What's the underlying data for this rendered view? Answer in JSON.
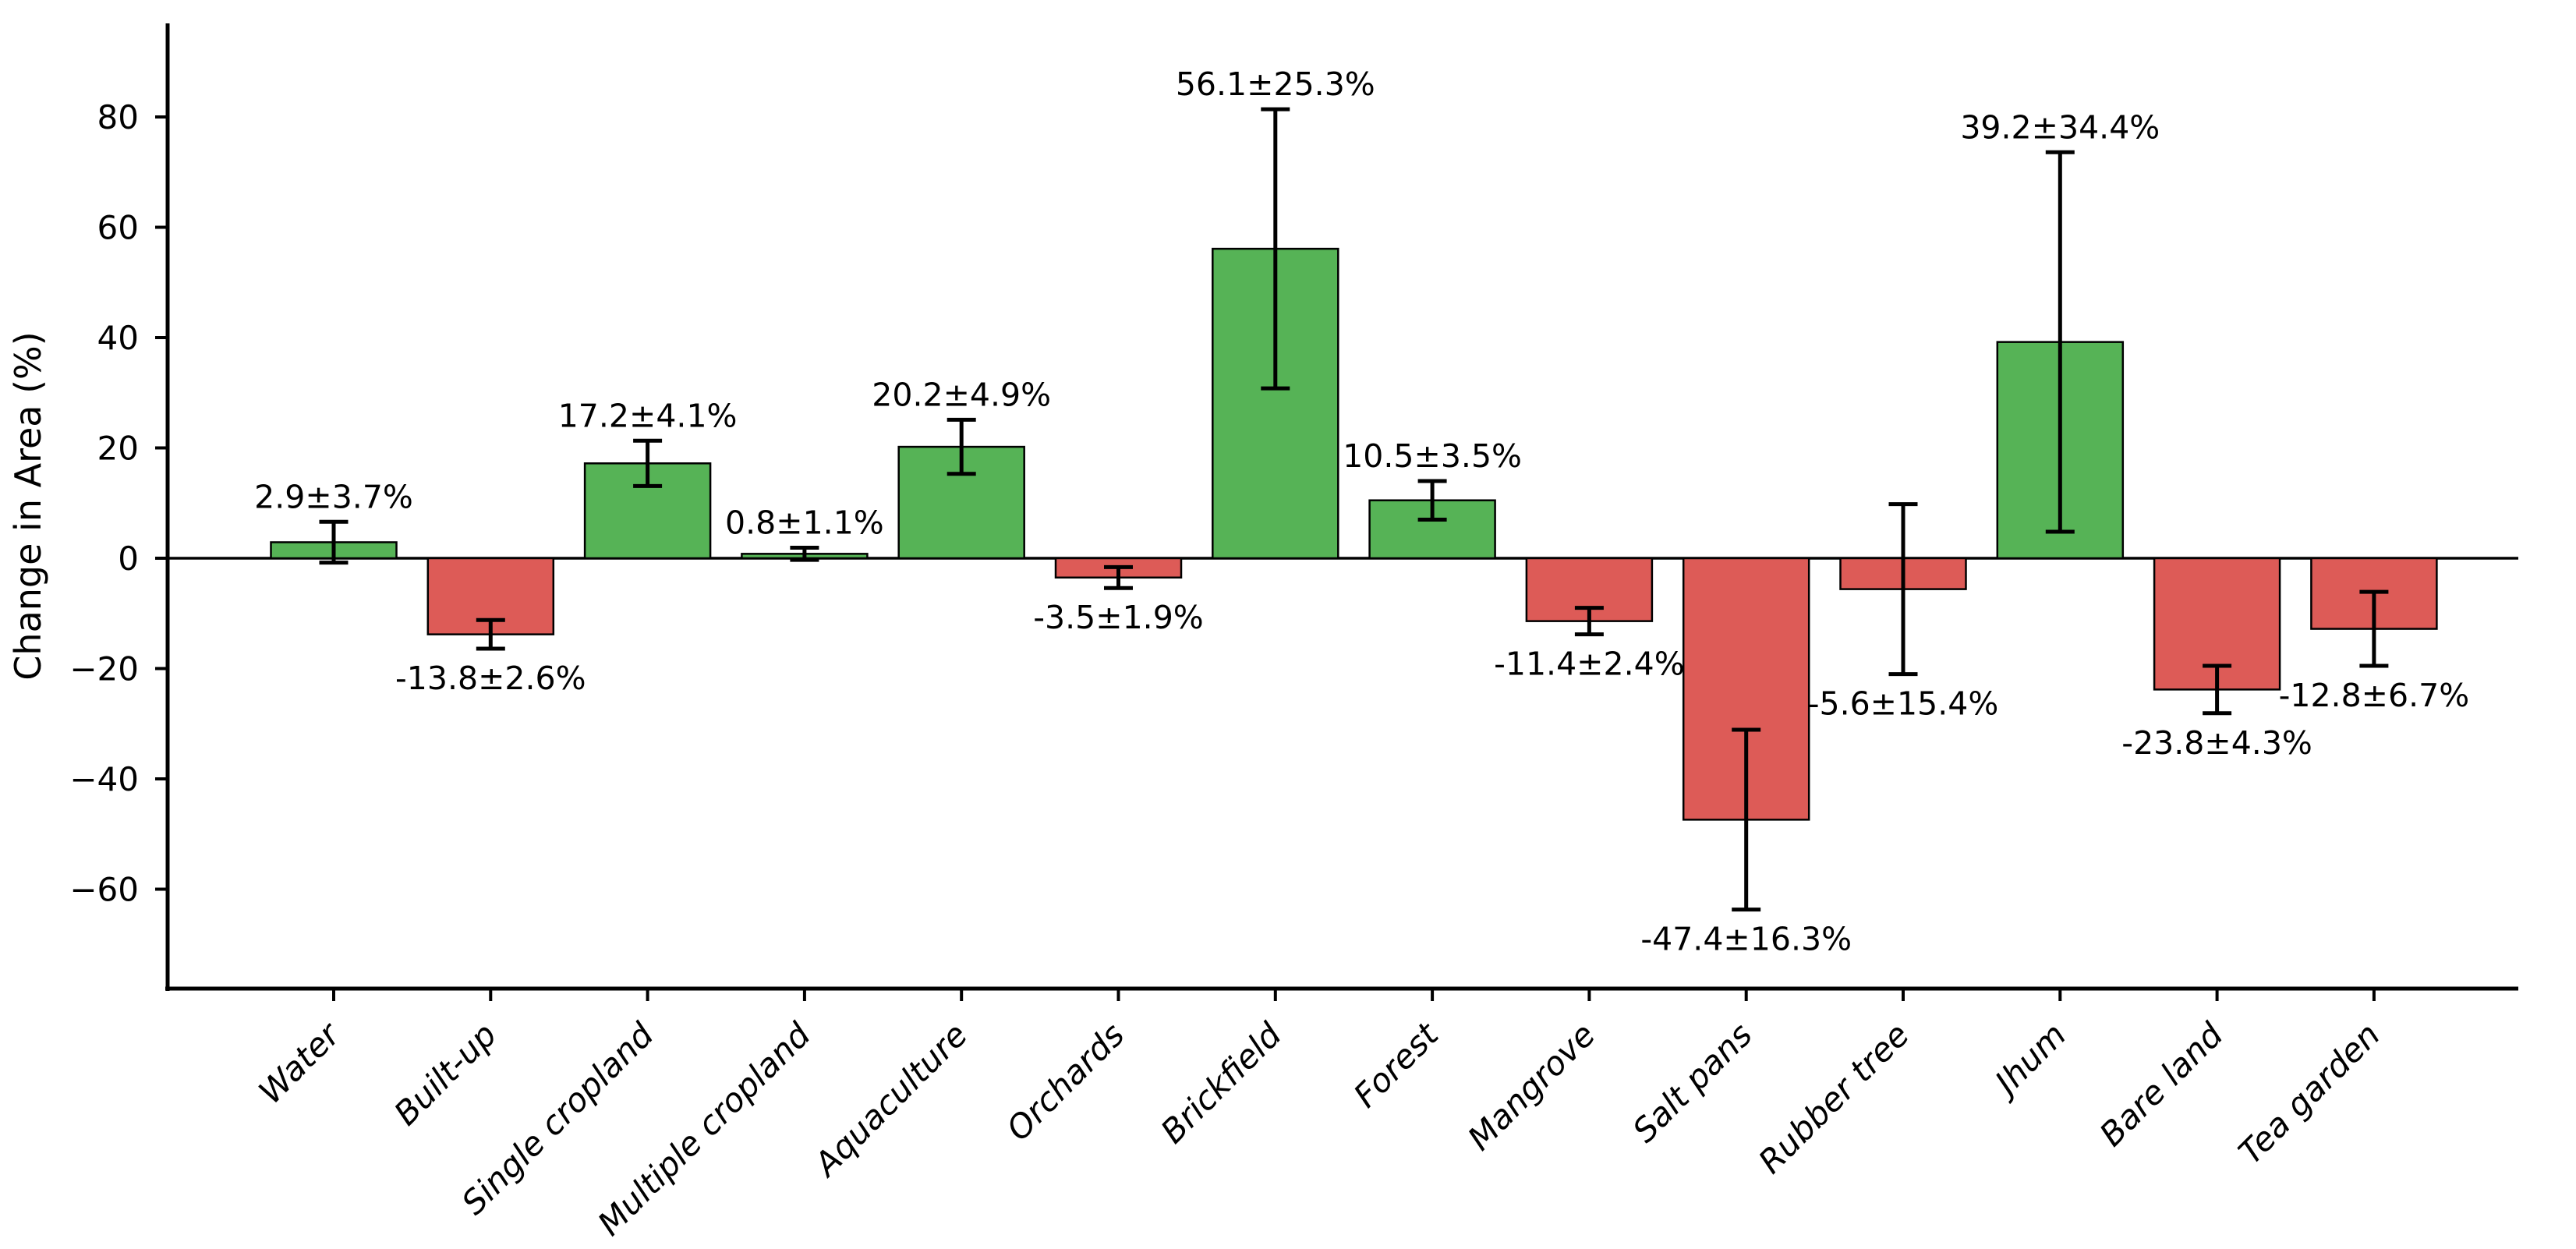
{
  "figure": {
    "ylabel": "Change in Area (%)"
  },
  "chart_data": {
    "type": "bar",
    "title": "",
    "xlabel": "",
    "ylabel": "Change in Area (%)",
    "categories": [
      "Water",
      "Built-up",
      "Single cropland",
      "Multiple cropland",
      "Aquaculture",
      "Orchards",
      "Brickfield",
      "Forest",
      "Mangrove",
      "Salt pans",
      "Rubber tree",
      "Jhum",
      "Bare land",
      "Tea garden"
    ],
    "values": [
      2.9,
      -13.8,
      17.2,
      0.8,
      20.2,
      -3.5,
      56.1,
      10.5,
      -11.4,
      -47.4,
      -5.6,
      39.2,
      -23.8,
      -12.8
    ],
    "errors": [
      3.7,
      2.6,
      4.1,
      1.1,
      4.9,
      1.9,
      25.3,
      3.5,
      2.4,
      16.3,
      15.4,
      34.4,
      4.3,
      6.7
    ],
    "labels": [
      "2.9±3.7%",
      "-13.8±2.6%",
      "17.2±4.1%",
      "0.8±1.1%",
      "20.2±4.9%",
      "-3.5±1.9%",
      "56.1±25.3%",
      "10.5±3.5%",
      "-11.4±2.4%",
      "-47.4±16.3%",
      "-5.6±15.4%",
      "39.2±34.4%",
      "-23.8±4.3%",
      "-12.8±6.7%"
    ],
    "yticks": [
      80,
      60,
      40,
      20,
      0,
      -20,
      -40,
      -60
    ],
    "ytick_labels": [
      "80",
      "60",
      "40",
      "20",
      "0",
      "−20",
      "−40",
      "−60"
    ],
    "ylim": [
      -77.5,
      97
    ],
    "grid": false,
    "legend": "none",
    "colors": {
      "positive_bar": "#56b356",
      "negative_bar": "#dd5b57",
      "bar_edge": "#000000",
      "error_bar": "#000000",
      "axis": "#000000",
      "background": "#ffffff"
    }
  }
}
